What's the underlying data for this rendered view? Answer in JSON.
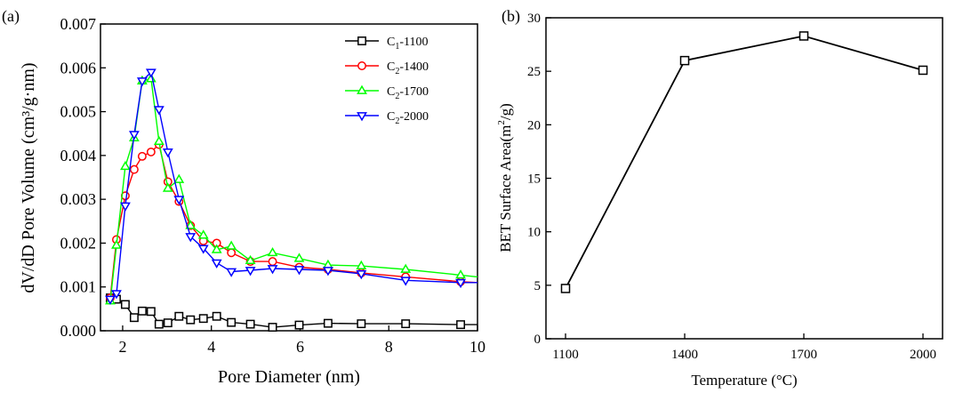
{
  "chart_data": [
    {
      "panel_label": "(a)",
      "type": "line",
      "xlabel": "Pore Diameter (nm)",
      "ylabel": "dV/dD Pore Volume (cm³/g·nm)",
      "xlim": [
        1.5,
        10
      ],
      "ylim": [
        0,
        0.007
      ],
      "xticks": [
        "2",
        "4",
        "6",
        "8",
        "10"
      ],
      "yticks": [
        "0.000",
        "0.001",
        "0.002",
        "0.003",
        "0.004",
        "0.005",
        "0.006",
        "0.007"
      ],
      "grid": false,
      "legend_position": "top-right",
      "series": [
        {
          "name": "C1-1100",
          "name_base": "C",
          "name_sub": "1",
          "name_rest": "-1100",
          "color": "#000000",
          "marker": "square",
          "x": [
            1.72,
            1.86,
            2.06,
            2.26,
            2.44,
            2.64,
            2.82,
            3.02,
            3.27,
            3.53,
            3.82,
            4.12,
            4.45,
            4.88,
            5.38,
            5.98,
            6.63,
            7.38,
            8.38,
            9.62,
            10.0
          ],
          "y": [
            0.00075,
            0.00072,
            0.0006,
            0.0003,
            0.00045,
            0.00044,
            0.00015,
            0.00018,
            0.00033,
            0.00025,
            0.00028,
            0.00033,
            0.00019,
            0.00015,
            8e-05,
            0.00013,
            0.00017,
            0.00016,
            0.00016,
            0.00014,
            0.00014
          ]
        },
        {
          "name": "C2-1400",
          "name_base": "C",
          "name_sub": "2",
          "name_rest": "-1400",
          "color": "#ff0000",
          "marker": "circle",
          "x": [
            1.72,
            1.86,
            2.06,
            2.26,
            2.44,
            2.64,
            2.82,
            3.02,
            3.27,
            3.53,
            3.82,
            4.12,
            4.45,
            4.88,
            5.38,
            5.98,
            6.63,
            7.38,
            8.38,
            9.62,
            10.0
          ],
          "y": [
            0.00075,
            0.00208,
            0.00308,
            0.00368,
            0.00398,
            0.00408,
            0.00425,
            0.0034,
            0.00295,
            0.0024,
            0.00205,
            0.002,
            0.00178,
            0.00158,
            0.00158,
            0.00145,
            0.0014,
            0.00132,
            0.00123,
            0.00112,
            0.0011
          ]
        },
        {
          "name": "C2-1700",
          "name_base": "C",
          "name_sub": "2",
          "name_rest": "-1700",
          "color": "#00ff00",
          "marker": "triangle-up",
          "x": [
            1.72,
            1.86,
            2.06,
            2.26,
            2.44,
            2.64,
            2.82,
            3.02,
            3.27,
            3.53,
            3.82,
            4.12,
            4.45,
            4.88,
            5.38,
            5.98,
            6.63,
            7.38,
            8.38,
            9.62,
            10.0
          ],
          "y": [
            0.00068,
            0.00195,
            0.00375,
            0.0044,
            0.0057,
            0.00575,
            0.00432,
            0.00325,
            0.00345,
            0.0024,
            0.00218,
            0.00185,
            0.00193,
            0.0016,
            0.00178,
            0.00165,
            0.0015,
            0.00148,
            0.0014,
            0.00127,
            0.00123
          ]
        },
        {
          "name": "C2-2000",
          "name_base": "C",
          "name_sub": "2",
          "name_rest": "-2000",
          "color": "#0000ff",
          "marker": "triangle-down",
          "x": [
            1.72,
            1.86,
            2.06,
            2.26,
            2.44,
            2.64,
            2.82,
            3.02,
            3.27,
            3.53,
            3.82,
            4.12,
            4.45,
            4.88,
            5.38,
            5.98,
            6.63,
            7.38,
            8.38,
            9.62,
            10.0
          ],
          "y": [
            0.00072,
            0.00085,
            0.00285,
            0.00448,
            0.0057,
            0.0059,
            0.00505,
            0.00408,
            0.003,
            0.00215,
            0.00188,
            0.00155,
            0.00135,
            0.00138,
            0.00142,
            0.0014,
            0.00138,
            0.0013,
            0.00115,
            0.0011,
            0.0011
          ]
        }
      ]
    },
    {
      "panel_label": "(b)",
      "type": "line",
      "xlabel": "Temperature (°C)",
      "ylabel_base": "BET Surface Area(m",
      "ylabel_sup": "2",
      "ylabel_rest": "/g)",
      "categories": [
        "1100",
        "1400",
        "1700",
        "2000"
      ],
      "values": [
        4.7,
        26.0,
        28.3,
        25.1
      ],
      "ylim": [
        0,
        30
      ],
      "yticks": [
        "0",
        "5",
        "10",
        "15",
        "20",
        "25",
        "30"
      ],
      "grid": false,
      "color": "#000000",
      "marker": "square"
    }
  ]
}
